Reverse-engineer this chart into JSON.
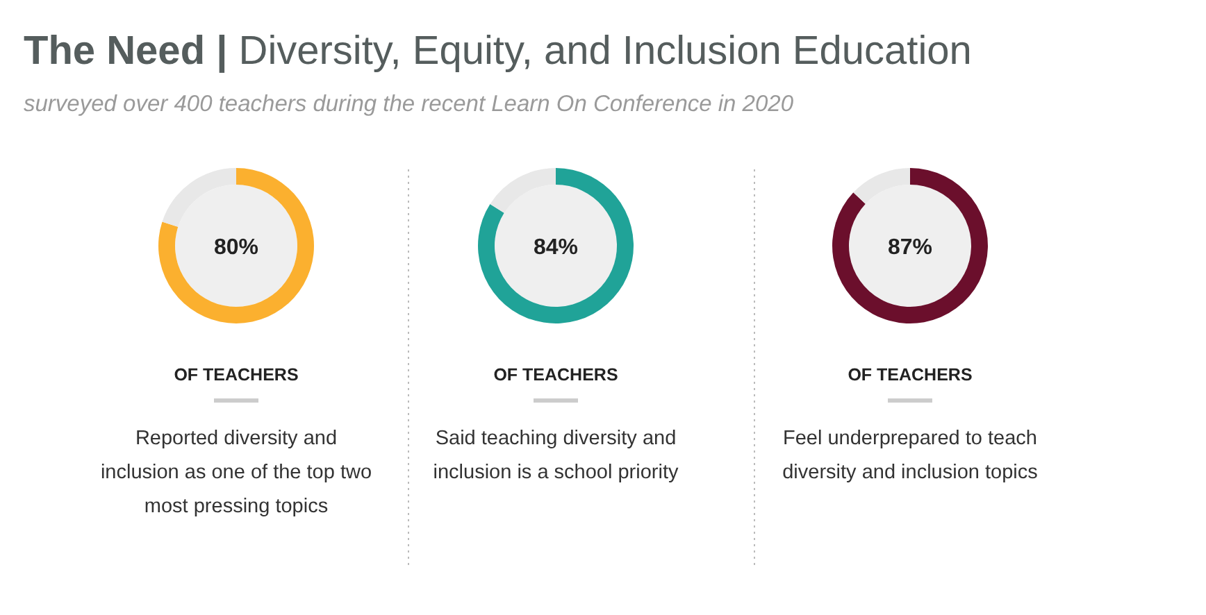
{
  "chart_data": [
    {
      "type": "donut",
      "title": "The Need | Diversity, Equity, and Inclusion Education",
      "subtitle": "surveyed over 400 teachers during the recent Learn On Conference in 2020",
      "categories": [
        null,
        null
      ],
      "values": [
        80,
        20
      ],
      "colors": [
        "#fbb02f",
        "#e8e8e8"
      ],
      "value_labels": [
        "80%",
        null
      ],
      "annotations": [
        "OF TEACHERS",
        "Reported diversity and inclusion as one of the top two most pressing topics"
      ]
    },
    {
      "type": "donut",
      "categories": [
        null,
        null
      ],
      "values": [
        84,
        16
      ],
      "colors": [
        "#20a398",
        "#e8e8e8"
      ],
      "value_labels": [
        "84%",
        null
      ],
      "annotations": [
        "OF TEACHERS",
        "Said teaching diversity and inclusion is a school priority"
      ]
    },
    {
      "type": "donut",
      "categories": [
        null,
        null
      ],
      "values": [
        87,
        13
      ],
      "colors": [
        "#6b0f2c",
        "#e8e8e8"
      ],
      "value_labels": [
        "87%",
        null
      ],
      "annotations": [
        "OF TEACHERS",
        "Feel underprepared to teach diversity and inclusion topics"
      ]
    }
  ]
}
